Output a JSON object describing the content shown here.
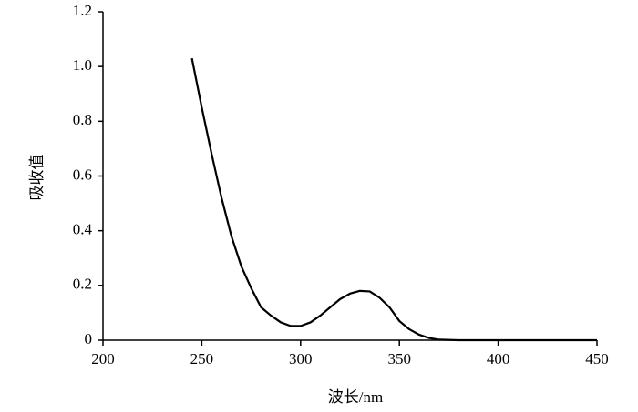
{
  "chart_data": {
    "type": "line",
    "x_label": "波长/nm",
    "y_label": "吸收值",
    "xlim": [
      200,
      450
    ],
    "xticks": [
      200,
      250,
      300,
      350,
      400,
      450
    ],
    "ylim": [
      0,
      1.2
    ],
    "yticks": [
      0,
      0.2,
      0.4,
      0.6,
      0.8,
      {
        "value": 1,
        "label": "1.0"
      },
      1.2
    ],
    "color": "#000000",
    "x": [
      245,
      250,
      255,
      260,
      265,
      270,
      275,
      280,
      285,
      290,
      295,
      300,
      305,
      310,
      315,
      320,
      325,
      330,
      335,
      340,
      345,
      350,
      355,
      360,
      365,
      370,
      380,
      400,
      420,
      450
    ],
    "values": [
      1.03,
      0.85,
      0.68,
      0.52,
      0.38,
      0.27,
      0.19,
      0.12,
      0.09,
      0.065,
      0.052,
      0.052,
      0.065,
      0.09,
      0.12,
      0.15,
      0.17,
      0.18,
      0.178,
      0.155,
      0.12,
      0.07,
      0.04,
      0.02,
      0.008,
      0.002,
      0,
      0,
      0,
      0
    ]
  }
}
